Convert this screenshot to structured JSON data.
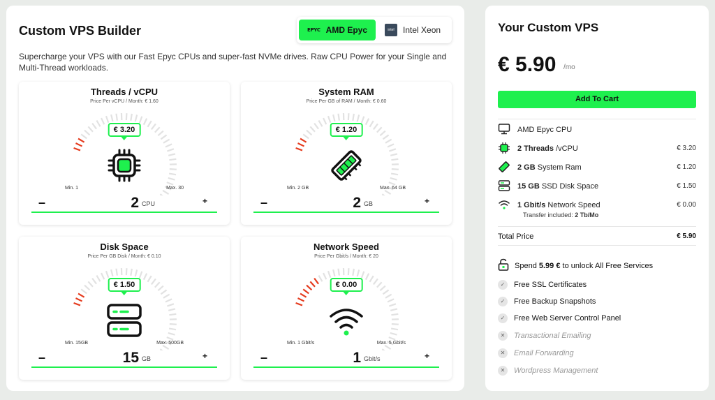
{
  "builder": {
    "title": "Custom VPS Builder",
    "cpu_options": [
      {
        "label": "AMD Epyc",
        "logo": "EPYC",
        "active": true
      },
      {
        "label": "Intel Xeon",
        "logo": "intel",
        "active": false
      }
    ],
    "description": "Supercharge your VPS with our Fast Epyc CPUs and super-fast NVMe drives. Raw CPU Power for your Single and Multi-Thread workloads."
  },
  "cards": [
    {
      "title": "Threads / vCPU",
      "subtitle": "Price Per vCPU / Month: € 1.60",
      "price": "€ 3.20",
      "min": "Min. 1",
      "max": "Max. 30",
      "value": "2",
      "unit": "CPU",
      "level": 0.03,
      "minus": "–",
      "plus": "+"
    },
    {
      "title": "System RAM",
      "subtitle": "Price Per GB of RAM / Month: € 0.60",
      "price": "€ 1.20",
      "min": "Min. 2 GB",
      "max": "Max. 64 GB",
      "value": "2",
      "unit": "GB",
      "level": 0.0,
      "minus": "–",
      "plus": "+"
    },
    {
      "title": "Disk Space",
      "subtitle": "Price Per GB Disk / Month: € 0.10",
      "price": "€ 1.50",
      "min": "Min. 15GB",
      "max": "Max. 500GB",
      "value": "15",
      "unit": "GB",
      "level": 0.03,
      "minus": "–",
      "plus": "+"
    },
    {
      "title": "Network Speed",
      "subtitle": "Price Per Gbit/s / Month: € 20",
      "price": "€ 0.00",
      "min": "Min. 1 Gbit/s",
      "max": "Max. 5 Gbit/s",
      "value": "1",
      "unit": "Gbit/s",
      "level": 0.18,
      "minus": "–",
      "plus": "+"
    }
  ],
  "summary": {
    "title": "Your Custom VPS",
    "price": "€ 5.90",
    "per": "/mo",
    "cart_label": "Add To Cart",
    "specs": [
      {
        "bold": "",
        "label": "AMD Epyc CPU",
        "value": "",
        "icon": "monitor-icon"
      },
      {
        "bold": "2 Threads",
        "label": " /vCPU",
        "value": "€ 3.20",
        "icon": "cpu-icon"
      },
      {
        "bold": "2 GB",
        "label": " System Ram",
        "value": "€ 1.20",
        "icon": "ram-icon"
      },
      {
        "bold": "15 GB",
        "label": " SSD Disk Space",
        "value": "€ 1.50",
        "icon": "disk-icon"
      },
      {
        "bold": "1 Gbit/s",
        "label": " Network Speed",
        "value": "€ 0.00",
        "icon": "wifi-icon"
      }
    ],
    "transfer_prefix": "Transfer included: ",
    "transfer_value": "2 Tb/Mo",
    "total_label": "Total Price",
    "total_value": "€ 5.90",
    "unlock_prefix": "Spend ",
    "unlock_amount": "5.99 €",
    "unlock_suffix": " to unlock All Free Services",
    "features": [
      {
        "label": "Free SSL Certificates",
        "enabled": true
      },
      {
        "label": "Free Backup Snapshots",
        "enabled": true
      },
      {
        "label": "Free Web Server Control Panel",
        "enabled": true
      },
      {
        "label": "Transactional Emailing",
        "enabled": false
      },
      {
        "label": "Email Forwarding",
        "enabled": false
      },
      {
        "label": "Wordpress Management",
        "enabled": false
      }
    ],
    "check_glyph": "✓",
    "cross_glyph": "✕"
  },
  "colors": {
    "accent": "#1ef04e",
    "gauge_on": "#e53b1e",
    "gauge_off": "#e2e2e2"
  }
}
